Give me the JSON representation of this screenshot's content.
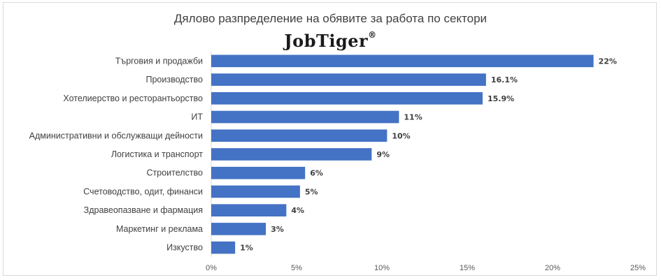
{
  "chart_data": {
    "type": "bar",
    "orientation": "horizontal",
    "title": "Дялово разпределение на обявите за работа по сектори",
    "logo": "JobTiger",
    "logo_mark": "®",
    "categories": [
      "Търговия и продажби",
      "Производство",
      "Хотелиерство и ресторантьорство",
      "ИТ",
      "Административни и обслужващи дейности",
      "Логистика и транспорт",
      "Строителство",
      "Счетоводство, одит, финанси",
      "Здравеопазване и фармация",
      "Маркетинг и реклама",
      "Изкуство"
    ],
    "values": [
      22.4,
      16.1,
      15.9,
      11,
      10.3,
      9.4,
      5.5,
      5.2,
      4.4,
      3.2,
      1.4
    ],
    "value_labels": [
      "22%",
      "16.1%",
      "15.9%",
      "11%",
      "10%",
      "9%",
      "6%",
      "5%",
      "4%",
      "3%",
      "1%"
    ],
    "xlim": [
      0,
      25
    ],
    "xticks": [
      0,
      5,
      10,
      15,
      20,
      25
    ],
    "xtick_labels": [
      "0%",
      "5%",
      "10%",
      "15%",
      "20%",
      "25%"
    ],
    "grid": false,
    "legend": "none",
    "bar_color": "#4472c4"
  }
}
